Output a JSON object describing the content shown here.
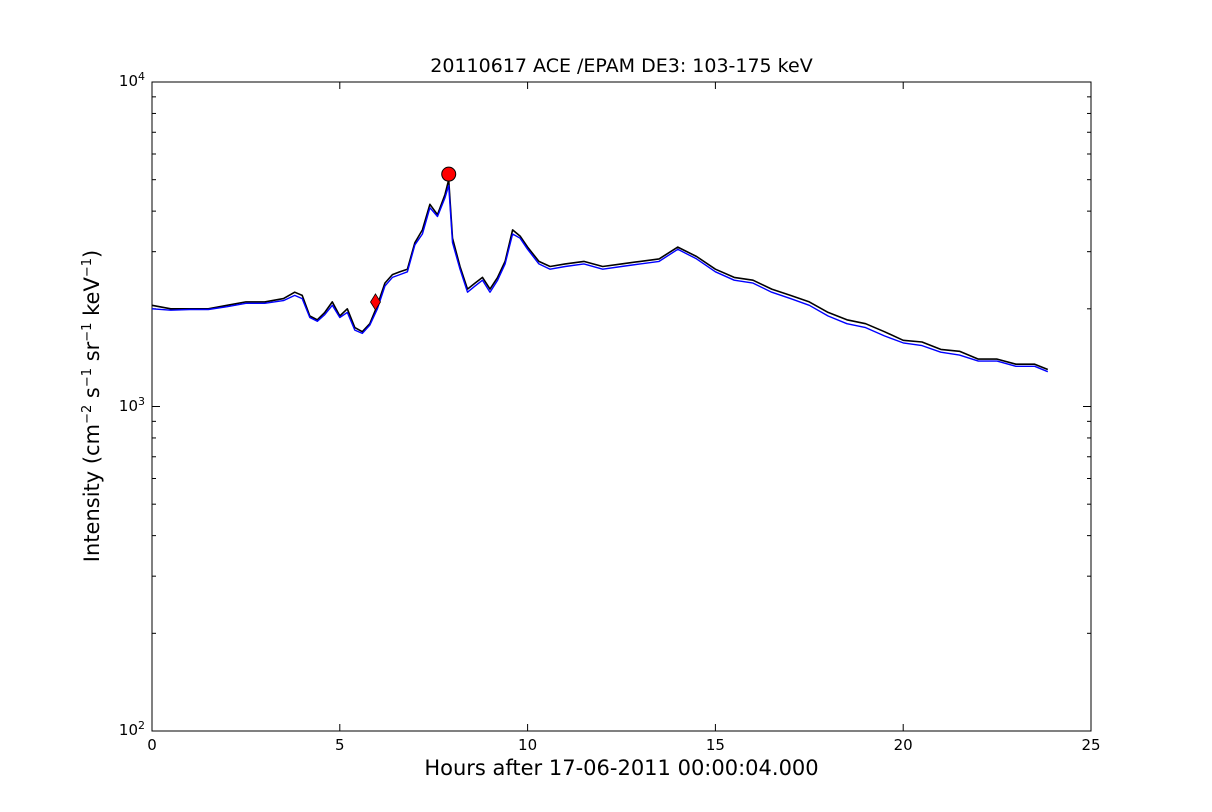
{
  "chart_data": {
    "type": "line",
    "title": "20110617 ACE /EPAM DE3: 103-175 keV",
    "xlabel": "Hours after 17-06-2011 00:00:04.000",
    "ylabel": {
      "prefix": "Intensity (cm",
      "e1": "−2",
      "s": " s",
      "e2": "−1",
      "sr": " sr",
      "e3": "−1",
      "kev": " keV",
      "e4": "−1",
      "suffix": ")"
    },
    "xlim": [
      0,
      25
    ],
    "ylim": [
      100,
      10000
    ],
    "yscale": "log",
    "grid": false,
    "x_ticks": [
      "0",
      "5",
      "10",
      "15",
      "20",
      "25"
    ],
    "y_ticks": [
      {
        "base": "10",
        "exp": "2",
        "value": 100
      },
      {
        "base": "10",
        "exp": "3",
        "value": 1000
      },
      {
        "base": "10",
        "exp": "4",
        "value": 10000
      }
    ],
    "series": [
      {
        "color": "#000000",
        "style": "raw",
        "x": [
          0.0,
          0.5,
          1.0,
          1.5,
          2.0,
          2.5,
          3.0,
          3.5,
          3.8,
          4.0,
          4.2,
          4.4,
          4.6,
          4.8,
          5.0,
          5.2,
          5.4,
          5.6,
          5.8,
          6.0,
          6.2,
          6.4,
          6.6,
          6.8,
          7.0,
          7.2,
          7.4,
          7.6,
          7.8,
          7.9,
          8.0,
          8.2,
          8.4,
          8.6,
          8.8,
          9.0,
          9.2,
          9.4,
          9.6,
          9.8,
          10.0,
          10.3,
          10.6,
          11.0,
          11.5,
          12.0,
          12.5,
          13.0,
          13.5,
          14.0,
          14.5,
          15.0,
          15.5,
          16.0,
          16.5,
          17.0,
          17.5,
          18.0,
          18.5,
          19.0,
          19.5,
          20.0,
          20.5,
          21.0,
          21.5,
          22.0,
          22.5,
          23.0,
          23.5,
          23.85
        ],
        "y": [
          2050,
          2000,
          2000,
          2000,
          2050,
          2100,
          2100,
          2150,
          2250,
          2200,
          1900,
          1850,
          1950,
          2100,
          1900,
          2000,
          1750,
          1700,
          1800,
          2050,
          2400,
          2550,
          2600,
          2650,
          3200,
          3500,
          4200,
          3900,
          4500,
          5000,
          3300,
          2700,
          2300,
          2400,
          2500,
          2300,
          2500,
          2800,
          3500,
          3350,
          3100,
          2800,
          2700,
          2750,
          2800,
          2700,
          2750,
          2800,
          2850,
          3100,
          2900,
          2650,
          2500,
          2450,
          2300,
          2200,
          2100,
          1950,
          1850,
          1800,
          1700,
          1600,
          1580,
          1500,
          1480,
          1400,
          1400,
          1350,
          1350,
          1300
        ]
      },
      {
        "color": "#0000ff",
        "style": "smoothed",
        "x": [
          0.0,
          0.5,
          1.0,
          1.5,
          2.0,
          2.5,
          3.0,
          3.5,
          3.8,
          4.0,
          4.2,
          4.4,
          4.6,
          4.8,
          5.0,
          5.2,
          5.4,
          5.6,
          5.8,
          6.0,
          6.2,
          6.4,
          6.6,
          6.8,
          7.0,
          7.2,
          7.4,
          7.6,
          7.8,
          7.9,
          8.0,
          8.2,
          8.4,
          8.6,
          8.8,
          9.0,
          9.2,
          9.4,
          9.6,
          9.8,
          10.0,
          10.3,
          10.6,
          11.0,
          11.5,
          12.0,
          12.5,
          13.0,
          13.5,
          14.0,
          14.5,
          15.0,
          15.5,
          16.0,
          16.5,
          17.0,
          17.5,
          18.0,
          18.5,
          19.0,
          19.5,
          20.0,
          20.5,
          21.0,
          21.5,
          22.0,
          22.5,
          23.0,
          23.5,
          23.85
        ],
        "y": [
          2000,
          1980,
          1990,
          1990,
          2030,
          2080,
          2080,
          2120,
          2200,
          2150,
          1880,
          1830,
          1920,
          2050,
          1880,
          1950,
          1720,
          1680,
          1780,
          2000,
          2350,
          2500,
          2550,
          2600,
          3150,
          3400,
          4100,
          3850,
          4400,
          4800,
          3200,
          2650,
          2250,
          2350,
          2450,
          2250,
          2450,
          2750,
          3400,
          3300,
          3050,
          2750,
          2650,
          2700,
          2750,
          2650,
          2700,
          2750,
          2800,
          3050,
          2850,
          2600,
          2450,
          2400,
          2250,
          2150,
          2050,
          1900,
          1800,
          1750,
          1650,
          1570,
          1540,
          1470,
          1440,
          1380,
          1380,
          1330,
          1330,
          1280
        ]
      }
    ],
    "markers": [
      {
        "shape": "circle",
        "x": 7.9,
        "y": 5200,
        "color": "#ff0000"
      },
      {
        "shape": "diamond",
        "x": 5.95,
        "y": 2100,
        "color": "#ff0000"
      }
    ]
  }
}
